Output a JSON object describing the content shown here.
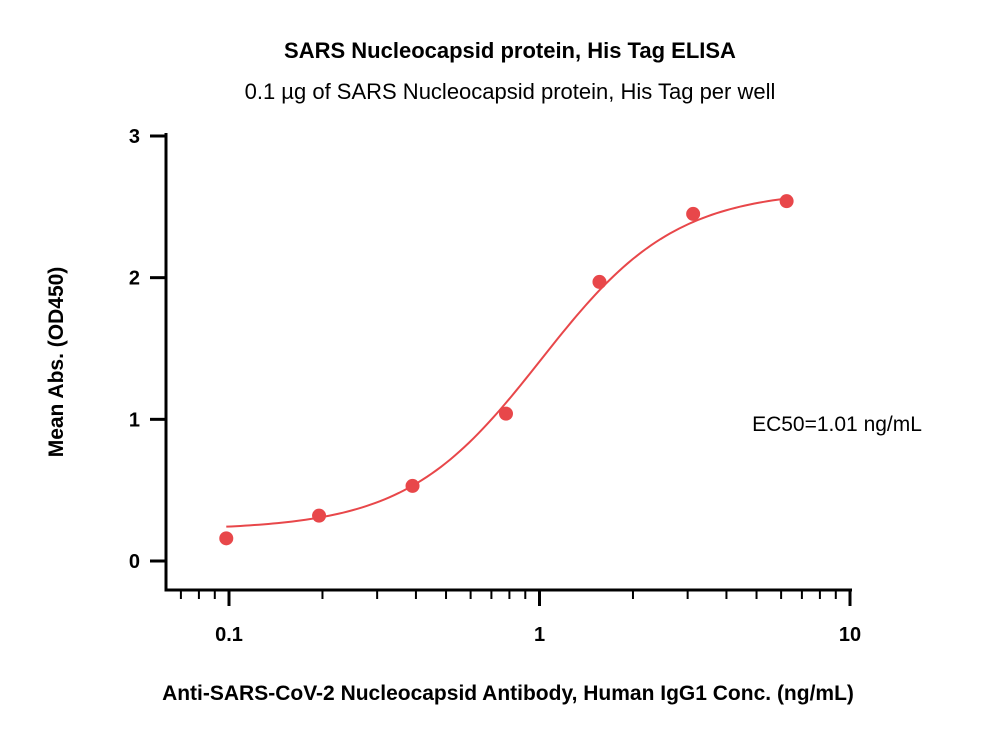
{
  "chart_data": {
    "type": "scatter",
    "title": "SARS Nucleocapsid protein, His Tag ELISA",
    "subtitle": "0.1 µg of SARS Nucleocapsid protein, His Tag per well",
    "xlabel": "Anti-SARS-CoV-2 Nucleocapsid Antibody, Human IgG1 Conc. (ng/mL)",
    "ylabel": "Mean Abs. (OD450)",
    "x_scale": "log",
    "xlim": [
      0.066,
      10
    ],
    "ylim": [
      -0.2,
      3
    ],
    "x_ticks": [
      0.1,
      1,
      10
    ],
    "x_tick_labels": [
      "0.1",
      "1",
      "10"
    ],
    "y_ticks": [
      0,
      1,
      2,
      3
    ],
    "y_tick_labels": [
      "0",
      "1",
      "2",
      "3"
    ],
    "grid": false,
    "color": "#e8474a",
    "series": [
      {
        "x": [
          0.098,
          0.195,
          0.39,
          0.78,
          1.56,
          3.125,
          6.25
        ],
        "y": [
          0.16,
          0.32,
          0.53,
          1.04,
          1.97,
          2.45,
          2.54
        ],
        "fit": {
          "bottom": 0.22,
          "top": 2.62,
          "ec50": 1.01,
          "hill": 2.0
        }
      }
    ],
    "annotation": "EC50=1.01 ng/mL"
  }
}
